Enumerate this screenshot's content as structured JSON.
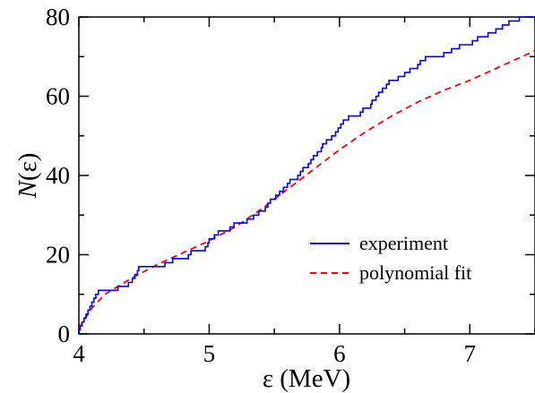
{
  "chart_data": {
    "type": "line",
    "xlabel": "ε (MeV)",
    "ylabel": "N(ε)",
    "ylabel_var": "N",
    "ylabel_arg": "(ε)",
    "xlim": [
      4,
      7.5
    ],
    "ylim": [
      0,
      80
    ],
    "x_ticks": [
      4,
      5,
      6,
      7
    ],
    "y_ticks": [
      0,
      20,
      40,
      60,
      80
    ],
    "grid": false,
    "legend_position": "lower-right",
    "series": [
      {
        "name": "experiment",
        "style": "step",
        "color": "#0000ff",
        "levels": [
          4.0,
          4.01,
          4.025,
          4.04,
          4.055,
          4.07,
          4.085,
          4.1,
          4.115,
          4.13,
          4.15,
          4.3,
          4.38,
          4.41,
          4.43,
          4.45,
          4.46,
          4.66,
          4.72,
          4.84,
          4.86,
          4.97,
          4.99,
          5.0,
          5.04,
          5.07,
          5.16,
          5.19,
          5.29,
          5.34,
          5.38,
          5.43,
          5.45,
          5.47,
          5.51,
          5.54,
          5.57,
          5.6,
          5.62,
          5.68,
          5.7,
          5.72,
          5.76,
          5.78,
          5.8,
          5.83,
          5.86,
          5.87,
          5.9,
          5.94,
          5.97,
          5.99,
          6.01,
          6.03,
          6.07,
          6.16,
          6.18,
          6.24,
          6.25,
          6.28,
          6.3,
          6.33,
          6.36,
          6.38,
          6.45,
          6.5,
          6.54,
          6.6,
          6.62,
          6.66,
          6.8,
          6.86,
          6.92,
          7.02,
          7.06,
          7.14,
          7.2,
          7.25,
          7.3,
          7.38
        ]
      },
      {
        "name": "polynomial fit",
        "style": "dashed",
        "color": "#ff0000",
        "x": [
          4.0,
          4.1,
          4.2,
          4.4,
          4.6,
          4.8,
          5.0,
          5.2,
          5.4,
          5.6,
          5.8,
          6.0,
          6.2,
          6.4,
          6.6,
          6.8,
          7.0,
          7.2,
          7.4,
          7.5
        ],
        "y": [
          1.5,
          6.5,
          10.0,
          14.0,
          17.5,
          20.5,
          23.5,
          27.0,
          31.5,
          36.5,
          41.5,
          46.5,
          51.0,
          55.0,
          58.5,
          61.5,
          64.0,
          67.0,
          70.0,
          71.5
        ]
      }
    ]
  }
}
